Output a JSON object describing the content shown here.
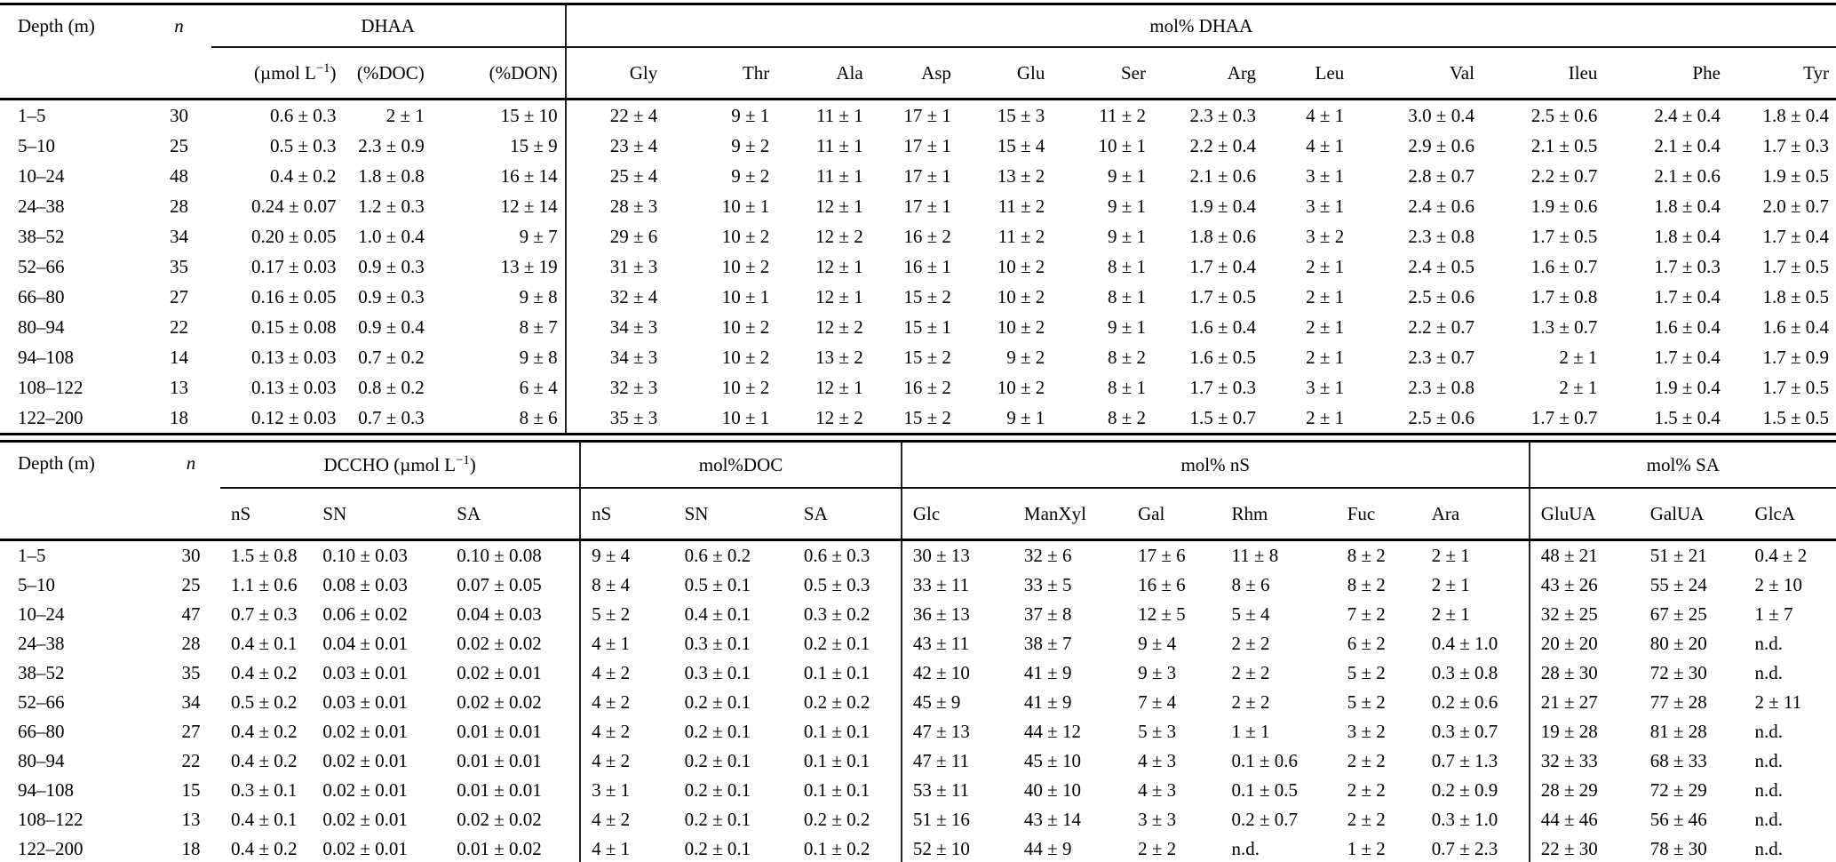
{
  "page": {
    "background": "#ffffff",
    "text_color": "#000000",
    "rule_color": "#000000"
  },
  "table1": {
    "header": {
      "depth": "Depth (m)",
      "n": "n",
      "group_dhaa": "DHAA",
      "group_mol_dhaa": "mol% DHAA",
      "unit_pre": "(µmol L",
      "unit_sup": "−1",
      "unit_post": ")",
      "sub_doc": "(%DOC)",
      "sub_don": "(%DON)",
      "amino_acids": [
        "Gly",
        "Thr",
        "Ala",
        "Asp",
        "Glu",
        "Ser",
        "Arg",
        "Leu",
        "Val",
        "Ileu",
        "Phe",
        "Tyr"
      ]
    },
    "rows": [
      [
        "1–5",
        "30",
        "0.6 ± 0.3",
        "2 ± 1",
        "15 ± 10",
        "22 ± 4",
        "9 ± 1",
        "11 ± 1",
        "17 ± 1",
        "15 ± 3",
        "11 ± 2",
        "2.3 ± 0.3",
        "4 ± 1",
        "3.0 ± 0.4",
        "2.5 ± 0.6",
        "2.4 ± 0.4",
        "1.8 ± 0.4"
      ],
      [
        "5–10",
        "25",
        "0.5 ± 0.3",
        "2.3 ± 0.9",
        "15 ± 9",
        "23 ± 4",
        "9 ± 2",
        "11 ± 1",
        "17 ± 1",
        "15 ± 4",
        "10 ± 1",
        "2.2 ± 0.4",
        "4 ± 1",
        "2.9 ± 0.6",
        "2.1 ± 0.5",
        "2.1 ± 0.4",
        "1.7 ± 0.3"
      ],
      [
        "10–24",
        "48",
        "0.4 ± 0.2",
        "1.8 ± 0.8",
        "16 ± 14",
        "25 ± 4",
        "9 ± 2",
        "11 ± 1",
        "17 ± 1",
        "13 ± 2",
        "9 ± 1",
        "2.1 ± 0.6",
        "3 ± 1",
        "2.8 ± 0.7",
        "2.2 ± 0.7",
        "2.1 ± 0.6",
        "1.9 ± 0.5"
      ],
      [
        "24–38",
        "28",
        "0.24 ± 0.07",
        "1.2 ± 0.3",
        "12 ± 14",
        "28 ± 3",
        "10 ± 1",
        "12 ± 1",
        "17 ± 1",
        "11 ± 2",
        "9 ± 1",
        "1.9 ± 0.4",
        "3 ± 1",
        "2.4 ± 0.6",
        "1.9 ± 0.6",
        "1.8 ± 0.4",
        "2.0 ± 0.7"
      ],
      [
        "38–52",
        "34",
        "0.20 ± 0.05",
        "1.0 ± 0.4",
        "9 ± 7",
        "29 ± 6",
        "10 ± 2",
        "12 ± 2",
        "16 ± 2",
        "11 ± 2",
        "9 ± 1",
        "1.8 ± 0.6",
        "3 ± 2",
        "2.3 ± 0.8",
        "1.7 ± 0.5",
        "1.8 ± 0.4",
        "1.7 ± 0.4"
      ],
      [
        "52–66",
        "35",
        "0.17 ± 0.03",
        "0.9 ± 0.3",
        "13 ± 19",
        "31 ± 3",
        "10 ± 2",
        "12 ± 1",
        "16 ± 1",
        "10 ± 2",
        "8 ± 1",
        "1.7 ± 0.4",
        "2 ± 1",
        "2.4 ± 0.5",
        "1.6 ± 0.7",
        "1.7 ± 0.3",
        "1.7 ± 0.5"
      ],
      [
        "66–80",
        "27",
        "0.16 ± 0.05",
        "0.9 ± 0.3",
        "9 ± 8",
        "32 ± 4",
        "10 ± 1",
        "12 ± 1",
        "15 ± 2",
        "10 ± 2",
        "8 ± 1",
        "1.7 ± 0.5",
        "2 ± 1",
        "2.5 ± 0.6",
        "1.7 ± 0.8",
        "1.7 ± 0.4",
        "1.8 ± 0.5"
      ],
      [
        "80–94",
        "22",
        "0.15 ± 0.08",
        "0.9 ± 0.4",
        "8 ± 7",
        "34 ± 3",
        "10 ± 2",
        "12 ± 2",
        "15 ± 1",
        "10 ± 2",
        "9 ± 1",
        "1.6 ± 0.4",
        "2 ± 1",
        "2.2 ± 0.7",
        "1.3 ± 0.7",
        "1.6 ± 0.4",
        "1.6 ± 0.4"
      ],
      [
        "94–108",
        "14",
        "0.13 ± 0.03",
        "0.7 ± 0.2",
        "9 ± 8",
        "34 ± 3",
        "10 ± 2",
        "13 ± 2",
        "15 ± 2",
        "9 ± 2",
        "8 ± 2",
        "1.6 ± 0.5",
        "2 ± 1",
        "2.3 ± 0.7",
        "2 ± 1",
        "1.7 ± 0.4",
        "1.7 ± 0.9"
      ],
      [
        "108–122",
        "13",
        "0.13 ± 0.03",
        "0.8 ± 0.2",
        "6 ± 4",
        "32 ± 3",
        "10 ± 2",
        "12 ± 1",
        "16 ± 2",
        "10 ± 2",
        "8 ± 1",
        "1.7 ± 0.3",
        "3 ± 1",
        "2.3 ± 0.8",
        "2 ± 1",
        "1.9 ± 0.4",
        "1.7 ± 0.5"
      ],
      [
        "122–200",
        "18",
        "0.12 ± 0.03",
        "0.7 ± 0.3",
        "8 ± 6",
        "35 ± 3",
        "10 ± 1",
        "12 ± 2",
        "15 ± 2",
        "9 ± 1",
        "8 ± 2",
        "1.5 ± 0.7",
        "2 ± 1",
        "2.5 ± 0.6",
        "1.7 ± 0.7",
        "1.5 ± 0.4",
        "1.5 ± 0.5"
      ]
    ]
  },
  "table2": {
    "header": {
      "depth": "Depth (m)",
      "n": "n",
      "group_dccho_pre": "DCCHO (µmol L",
      "group_dccho_sup": "−1",
      "group_dccho_post": ")",
      "group_moldoc": "mol%DOC",
      "group_molns": "mol% nS",
      "group_molsa": "mol% SA",
      "sub_dccho": [
        "nS",
        "SN",
        "SA"
      ],
      "sub_moldoc": [
        "nS",
        "SN",
        "SA"
      ],
      "sub_molns": [
        "Glc",
        "ManXyl",
        "Gal",
        "Rhm",
        "Fuc",
        "Ara"
      ],
      "sub_molsa": [
        "GluUA",
        "GalUA",
        "GlcA"
      ]
    },
    "rows": [
      [
        "1–5",
        "30",
        "1.5 ± 0.8",
        "0.10 ± 0.03",
        "0.10 ± 0.08",
        "9 ± 4",
        "0.6 ± 0.2",
        "0.6 ± 0.3",
        "30 ± 13",
        "32 ± 6",
        "17 ± 6",
        "11 ± 8",
        "8 ± 2",
        "2 ± 1",
        "48 ± 21",
        "51 ± 21",
        "0.4 ± 2"
      ],
      [
        "5–10",
        "25",
        "1.1 ± 0.6",
        "0.08 ± 0.03",
        "0.07 ± 0.05",
        "8 ± 4",
        "0.5 ± 0.1",
        "0.5 ± 0.3",
        "33 ± 11",
        "33 ± 5",
        "16 ± 6",
        "8 ± 6",
        "8 ± 2",
        "2 ± 1",
        "43 ± 26",
        "55 ± 24",
        "2 ± 10"
      ],
      [
        "10–24",
        "47",
        "0.7 ± 0.3",
        "0.06 ± 0.02",
        "0.04 ± 0.03",
        "5 ± 2",
        "0.4 ± 0.1",
        "0.3 ± 0.2",
        "36 ± 13",
        "37 ± 8",
        "12 ± 5",
        "5 ± 4",
        "7 ± 2",
        "2 ± 1",
        "32 ± 25",
        "67 ± 25",
        "1 ± 7"
      ],
      [
        "24–38",
        "28",
        "0.4 ± 0.1",
        "0.04 ± 0.01",
        "0.02 ± 0.02",
        "4 ± 1",
        "0.3 ± 0.1",
        "0.2 ± 0.1",
        "43 ± 11",
        "38 ± 7",
        "9 ± 4",
        "2 ± 2",
        "6 ± 2",
        "0.4 ± 1.0",
        "20 ± 20",
        "80 ± 20",
        "n.d."
      ],
      [
        "38–52",
        "35",
        "0.4 ± 0.2",
        "0.03 ± 0.01",
        "0.02 ± 0.01",
        "4 ± 2",
        "0.3 ± 0.1",
        "0.1 ± 0.1",
        "42 ± 10",
        "41 ± 9",
        "9 ± 3",
        "2 ± 2",
        "5 ± 2",
        "0.3 ± 0.8",
        "28 ± 30",
        "72 ± 30",
        "n.d."
      ],
      [
        "52–66",
        "34",
        "0.5 ± 0.2",
        "0.03 ± 0.01",
        "0.02 ± 0.02",
        "4 ± 2",
        "0.2 ± 0.1",
        "0.2 ± 0.2",
        "45 ± 9",
        "41 ± 9",
        "7 ± 4",
        "2 ± 2",
        "5 ± 2",
        "0.2 ± 0.6",
        "21 ± 27",
        "77 ± 28",
        "2 ± 11"
      ],
      [
        "66–80",
        "27",
        "0.4 ± 0.2",
        "0.02 ± 0.01",
        "0.01 ± 0.01",
        "4 ± 2",
        "0.2 ± 0.1",
        "0.1 ± 0.1",
        "47 ± 13",
        "44 ± 12",
        "5 ± 3",
        "1 ± 1",
        "3 ± 2",
        "0.3 ± 0.7",
        "19 ± 28",
        "81 ± 28",
        "n.d."
      ],
      [
        "80–94",
        "22",
        "0.4 ± 0.2",
        "0.02 ± 0.01",
        "0.01 ± 0.01",
        "4 ± 2",
        "0.2 ± 0.1",
        "0.1 ± 0.1",
        "47 ± 11",
        "45 ± 10",
        "4 ± 3",
        "0.1 ± 0.6",
        "2 ± 2",
        "0.7 ± 1.3",
        "32 ± 33",
        "68 ± 33",
        "n.d."
      ],
      [
        "94–108",
        "15",
        "0.3 ± 0.1",
        "0.02 ± 0.01",
        "0.01 ± 0.01",
        "3 ± 1",
        "0.2 ± 0.1",
        "0.1 ± 0.1",
        "53 ± 11",
        "40 ± 10",
        "4 ± 3",
        "0.1 ± 0.5",
        "2 ± 2",
        "0.2 ± 0.9",
        "28 ± 29",
        "72 ± 29",
        "n.d."
      ],
      [
        "108–122",
        "13",
        "0.4 ± 0.1",
        "0.02 ± 0.01",
        "0.02 ± 0.02",
        "4 ± 2",
        "0.2 ± 0.1",
        "0.2 ± 0.2",
        "51 ± 16",
        "43 ± 14",
        "3 ± 3",
        "0.2 ± 0.7",
        "2 ± 2",
        "0.3 ± 1.0",
        "44 ± 46",
        "56 ± 46",
        "n.d."
      ],
      [
        "122–200",
        "18",
        "0.4 ± 0.2",
        "0.02 ± 0.01",
        "0.01 ± 0.02",
        "4 ± 1",
        "0.2 ± 0.1",
        "0.1 ± 0.2",
        "52 ± 10",
        "44 ± 9",
        "2 ± 2",
        "n.d.",
        "1 ± 2",
        "0.7 ± 2.3",
        "22 ± 30",
        "78 ± 30",
        "n.d."
      ]
    ]
  }
}
